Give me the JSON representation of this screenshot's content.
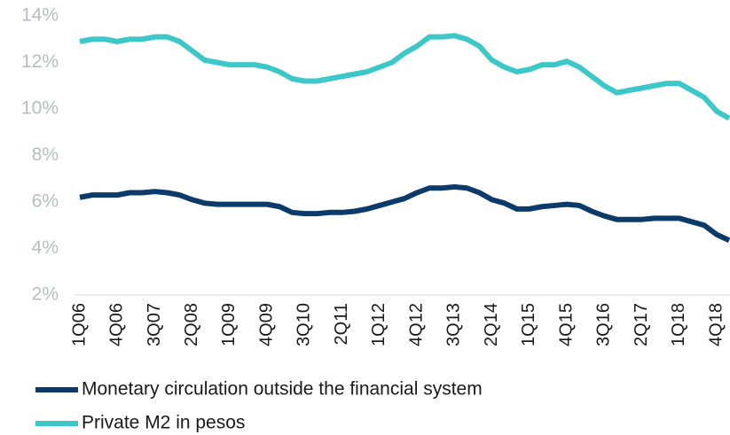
{
  "chart_data": {
    "type": "line",
    "categories": [
      "1Q06",
      null,
      null,
      "4Q06",
      null,
      null,
      "3Q07",
      null,
      null,
      "2Q08",
      null,
      null,
      "1Q09",
      null,
      null,
      "4Q09",
      null,
      null,
      "3Q10",
      null,
      null,
      "2Q11",
      null,
      null,
      "1Q12",
      null,
      null,
      "4Q12",
      null,
      null,
      "3Q13",
      null,
      null,
      "2Q14",
      null,
      null,
      "1Q15",
      null,
      null,
      "4Q15",
      null,
      null,
      "3Q16",
      null,
      null,
      "2Q17",
      null,
      null,
      "1Q18",
      null,
      null,
      "4Q18",
      null
    ],
    "series": [
      {
        "name": "Monetary circulation outside the financial system",
        "color": "#0b3a6b",
        "values": [
          6.2,
          6.3,
          6.3,
          6.3,
          6.4,
          6.4,
          6.45,
          6.4,
          6.3,
          6.1,
          5.95,
          5.9,
          5.9,
          5.9,
          5.9,
          5.9,
          5.8,
          5.55,
          5.5,
          5.5,
          5.55,
          5.55,
          5.6,
          5.7,
          5.85,
          6.0,
          6.15,
          6.4,
          6.6,
          6.6,
          6.65,
          6.6,
          6.4,
          6.1,
          5.95,
          5.7,
          5.7,
          5.8,
          5.85,
          5.9,
          5.85,
          5.6,
          5.4,
          5.25,
          5.25,
          5.25,
          5.3,
          5.3,
          5.3,
          5.15,
          5.0,
          4.6,
          4.35
        ]
      },
      {
        "name": "Private M2 in pesos",
        "color": "#3cc8c8",
        "values": [
          12.9,
          13.0,
          13.0,
          12.9,
          13.0,
          13.0,
          13.1,
          13.1,
          12.9,
          12.5,
          12.1,
          12.0,
          11.9,
          11.9,
          11.9,
          11.8,
          11.6,
          11.3,
          11.2,
          11.2,
          11.3,
          11.4,
          11.5,
          11.6,
          11.8,
          12.0,
          12.4,
          12.7,
          13.1,
          13.1,
          13.15,
          13.0,
          12.7,
          12.1,
          11.8,
          11.6,
          11.7,
          11.9,
          11.9,
          12.05,
          11.8,
          11.4,
          11.0,
          10.7,
          10.8,
          10.9,
          11.0,
          11.1,
          11.1,
          10.8,
          10.5,
          9.9,
          9.6
        ]
      }
    ],
    "ylim": [
      2,
      14
    ],
    "yticks": [
      {
        "value": 2,
        "label": "2%"
      },
      {
        "value": 4,
        "label": "4%"
      },
      {
        "value": 6,
        "label": "6%"
      },
      {
        "value": 8,
        "label": "8%"
      },
      {
        "value": 10,
        "label": "10%"
      },
      {
        "value": 12,
        "label": "12%"
      },
      {
        "value": 14,
        "label": "14%"
      }
    ],
    "legend": "bottom-left"
  }
}
